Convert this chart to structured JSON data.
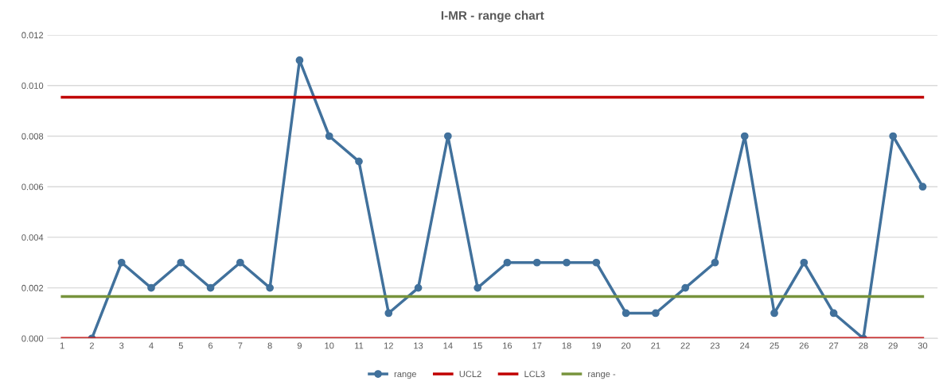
{
  "chart_data": {
    "type": "line",
    "title": "I-MR - range chart",
    "categories": [
      "1",
      "2",
      "3",
      "4",
      "5",
      "6",
      "7",
      "8",
      "9",
      "10",
      "11",
      "12",
      "13",
      "14",
      "15",
      "16",
      "17",
      "18",
      "19",
      "20",
      "21",
      "22",
      "23",
      "24",
      "25",
      "26",
      "27",
      "28",
      "29",
      "30"
    ],
    "series": [
      {
        "name": "range",
        "color": "#41719c",
        "marker": "circle",
        "values": [
          null,
          0,
          0.003,
          0.002,
          0.003,
          0.002,
          0.003,
          0.002,
          0.011,
          0.008,
          0.007,
          0.001,
          0.002,
          0.008,
          0.002,
          0.003,
          0.003,
          0.003,
          0.003,
          0.001,
          0.001,
          0.002,
          0.003,
          0.008,
          0.001,
          0.003,
          0.001,
          0,
          0.008,
          0.006
        ]
      },
      {
        "name": "UCL2",
        "color": "#c00000",
        "marker": "none",
        "values": [
          0.00954,
          0.00954,
          0.00954,
          0.00954,
          0.00954,
          0.00954,
          0.00954,
          0.00954,
          0.00954,
          0.00954,
          0.00954,
          0.00954,
          0.00954,
          0.00954,
          0.00954,
          0.00954,
          0.00954,
          0.00954,
          0.00954,
          0.00954,
          0.00954,
          0.00954,
          0.00954,
          0.00954,
          0.00954,
          0.00954,
          0.00954,
          0.00954,
          0.00954,
          0.00954
        ]
      },
      {
        "name": "LCL3",
        "color": "#c00000",
        "marker": "none",
        "values": [
          0,
          0,
          0,
          0,
          0,
          0,
          0,
          0,
          0,
          0,
          0,
          0,
          0,
          0,
          0,
          0,
          0,
          0,
          0,
          0,
          0,
          0,
          0,
          0,
          0,
          0,
          0,
          0,
          0,
          0
        ]
      },
      {
        "name": "range -",
        "color": "#77933c",
        "marker": "none",
        "values": [
          0.00166,
          0.00166,
          0.00166,
          0.00166,
          0.00166,
          0.00166,
          0.00166,
          0.00166,
          0.00166,
          0.00166,
          0.00166,
          0.00166,
          0.00166,
          0.00166,
          0.00166,
          0.00166,
          0.00166,
          0.00166,
          0.00166,
          0.00166,
          0.00166,
          0.00166,
          0.00166,
          0.00166,
          0.00166,
          0.00166,
          0.00166,
          0.00166,
          0.00166,
          0.00166
        ]
      }
    ],
    "ylim": [
      0,
      0.012
    ],
    "yticks": [
      {
        "value": 0,
        "label": "0.000"
      },
      {
        "value": 0.002,
        "label": "0.002"
      },
      {
        "value": 0.004,
        "label": "0.004"
      },
      {
        "value": 0.006,
        "label": "0.006"
      },
      {
        "value": 0.008,
        "label": "0.008"
      },
      {
        "value": 0.01,
        "label": "0.010"
      },
      {
        "value": 0.012,
        "label": "0.012"
      }
    ],
    "grid": "y",
    "legend": "bottom",
    "line_style": "solid"
  }
}
